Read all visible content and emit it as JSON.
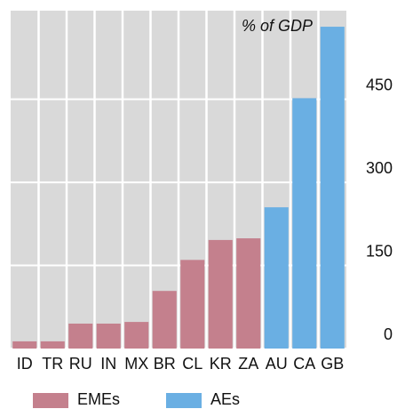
{
  "chart_data": {
    "type": "bar",
    "y_label": "% of GDP",
    "categories": [
      "ID",
      "TR",
      "RU",
      "IN",
      "MX",
      "BR",
      "CL",
      "KR",
      "ZA",
      "AU",
      "CA",
      "GB"
    ],
    "series": [
      {
        "name": "EMEs",
        "color": "#c4808d",
        "values": [
          13,
          13,
          45,
          45,
          48,
          104,
          160,
          196,
          199,
          null,
          null,
          null
        ]
      },
      {
        "name": "AEs",
        "color": "#6aafe3",
        "values": [
          null,
          null,
          null,
          null,
          null,
          null,
          null,
          null,
          null,
          255,
          452,
          581
        ]
      }
    ],
    "ylim": [
      0,
      610
    ],
    "yticks": [
      0,
      150,
      300,
      450
    ],
    "grid": true
  }
}
